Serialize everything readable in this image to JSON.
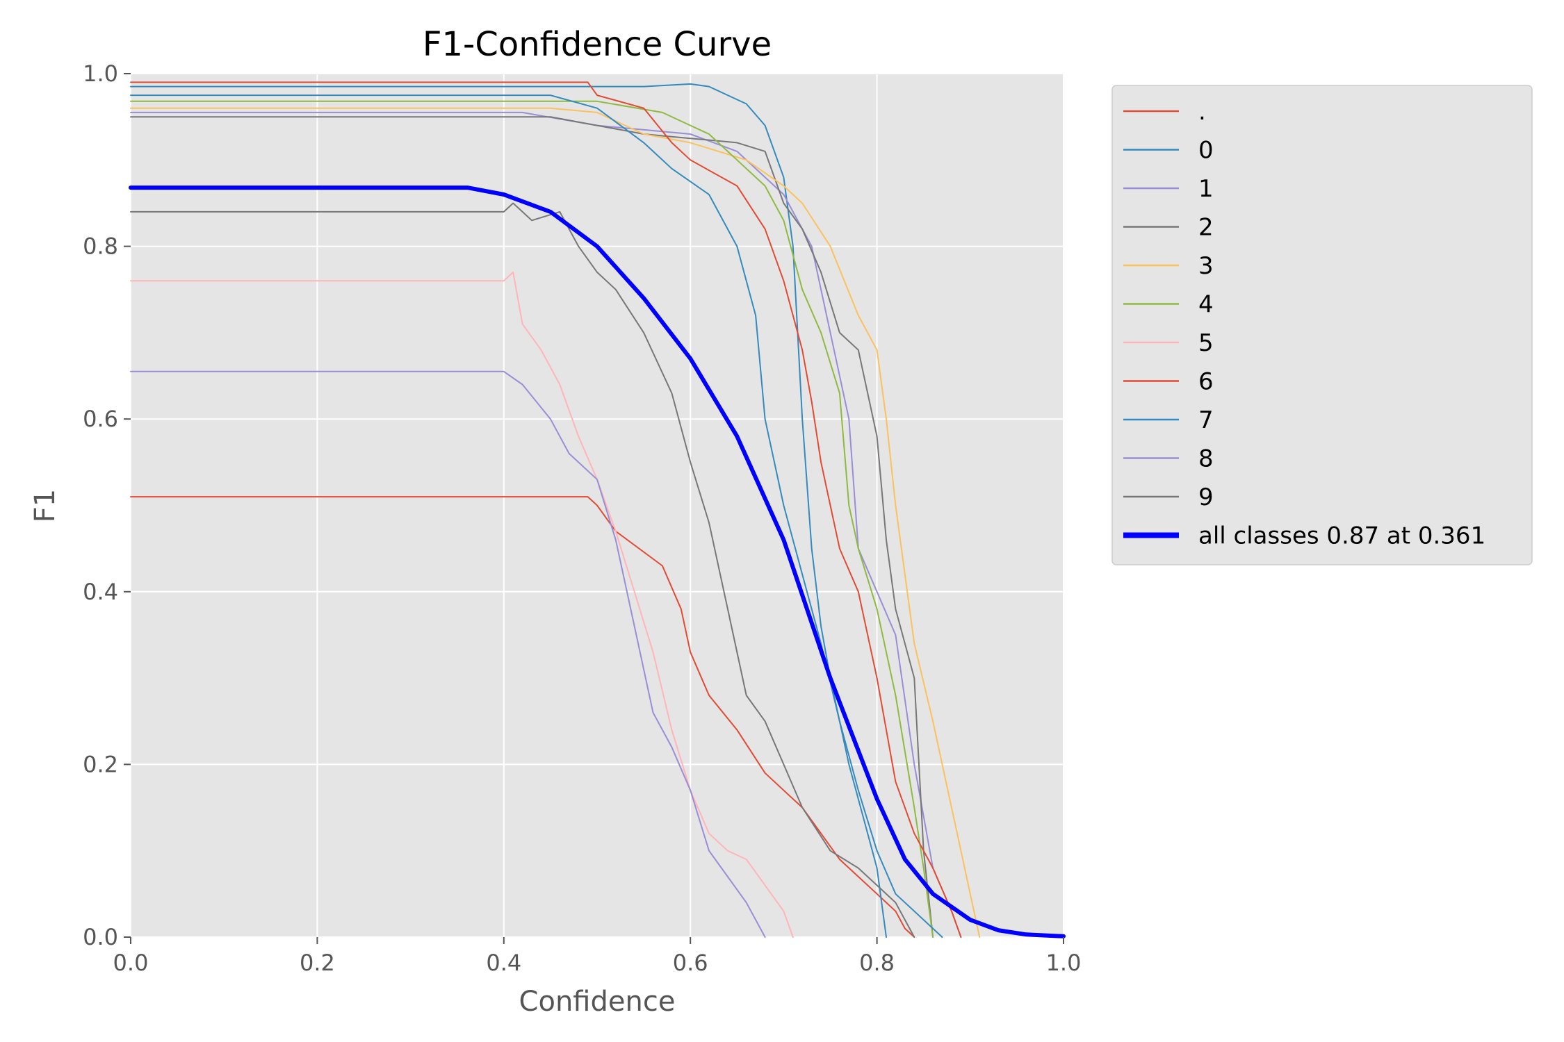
{
  "chart_data": {
    "type": "line",
    "title": "F1-Confidence Curve",
    "xlabel": "Confidence",
    "ylabel": "F1",
    "xlim": [
      0.0,
      1.0
    ],
    "ylim": [
      0.0,
      1.0
    ],
    "xticks": [
      "0.0",
      "0.2",
      "0.4",
      "0.6",
      "0.8",
      "1.0"
    ],
    "yticks": [
      "0.0",
      "0.2",
      "0.4",
      "0.6",
      "0.8",
      "1.0"
    ],
    "grid": true,
    "legend_position": "outside-right-top",
    "background": "#e5e5e5",
    "series": [
      {
        "name": ".",
        "color": "#e24a33",
        "width": 2,
        "x": [
          0,
          0.49,
          0.5,
          0.52,
          0.57,
          0.59,
          0.6,
          0.62,
          0.65,
          0.68,
          0.7,
          0.72,
          0.74,
          0.76,
          0.78,
          0.8,
          0.82,
          0.83,
          0.84
        ],
        "y": [
          0.51,
          0.51,
          0.5,
          0.47,
          0.43,
          0.38,
          0.33,
          0.28,
          0.24,
          0.19,
          0.17,
          0.15,
          0.12,
          0.09,
          0.07,
          0.05,
          0.03,
          0.01,
          0
        ]
      },
      {
        "name": "0",
        "color": "#348abd",
        "width": 2,
        "x": [
          0,
          0.5,
          0.55,
          0.6,
          0.62,
          0.64,
          0.66,
          0.68,
          0.7,
          0.71,
          0.72,
          0.73,
          0.74,
          0.75,
          0.77,
          0.79,
          0.8,
          0.81
        ],
        "y": [
          0.985,
          0.985,
          0.985,
          0.988,
          0.985,
          0.975,
          0.965,
          0.94,
          0.88,
          0.8,
          0.6,
          0.45,
          0.36,
          0.3,
          0.2,
          0.12,
          0.08,
          0
        ]
      },
      {
        "name": "1",
        "color": "#988ed5",
        "width": 2,
        "x": [
          0,
          0.42,
          0.5,
          0.6,
          0.65,
          0.7,
          0.73,
          0.75,
          0.77,
          0.78,
          0.8,
          0.82,
          0.84,
          0.86,
          0.88,
          0.89
        ],
        "y": [
          0.955,
          0.955,
          0.94,
          0.93,
          0.91,
          0.86,
          0.8,
          0.7,
          0.6,
          0.45,
          0.4,
          0.35,
          0.2,
          0.08,
          0.03,
          0
        ]
      },
      {
        "name": "2",
        "color": "#777777",
        "width": 2,
        "x": [
          0,
          0.45,
          0.5,
          0.55,
          0.6,
          0.65,
          0.68,
          0.7,
          0.72,
          0.74,
          0.76,
          0.78,
          0.8,
          0.81,
          0.82,
          0.84,
          0.85,
          0.86
        ],
        "y": [
          0.95,
          0.95,
          0.94,
          0.93,
          0.925,
          0.92,
          0.91,
          0.85,
          0.82,
          0.77,
          0.7,
          0.68,
          0.58,
          0.46,
          0.38,
          0.3,
          0.1,
          0
        ]
      },
      {
        "name": "3",
        "color": "#fbc15e",
        "width": 2,
        "x": [
          0,
          0.45,
          0.5,
          0.55,
          0.6,
          0.66,
          0.7,
          0.72,
          0.75,
          0.78,
          0.8,
          0.81,
          0.82,
          0.84,
          0.86,
          0.87,
          0.89,
          0.9,
          0.91
        ],
        "y": [
          0.96,
          0.96,
          0.955,
          0.93,
          0.92,
          0.9,
          0.87,
          0.85,
          0.8,
          0.72,
          0.68,
          0.6,
          0.5,
          0.34,
          0.25,
          0.2,
          0.1,
          0.05,
          0
        ]
      },
      {
        "name": "4",
        "color": "#8eba42",
        "width": 2,
        "x": [
          0,
          0.5,
          0.57,
          0.6,
          0.62,
          0.65,
          0.68,
          0.7,
          0.72,
          0.74,
          0.76,
          0.77,
          0.78,
          0.8,
          0.81,
          0.82,
          0.84,
          0.85,
          0.86
        ],
        "y": [
          0.968,
          0.968,
          0.955,
          0.94,
          0.93,
          0.9,
          0.87,
          0.83,
          0.75,
          0.7,
          0.63,
          0.5,
          0.45,
          0.38,
          0.33,
          0.28,
          0.15,
          0.08,
          0
        ]
      },
      {
        "name": "5",
        "color": "#ffb5b8",
        "width": 2,
        "x": [
          0,
          0.4,
          0.41,
          0.42,
          0.44,
          0.46,
          0.48,
          0.5,
          0.52,
          0.54,
          0.56,
          0.58,
          0.6,
          0.62,
          0.64,
          0.66,
          0.68,
          0.7,
          0.71
        ],
        "y": [
          0.76,
          0.76,
          0.77,
          0.71,
          0.68,
          0.64,
          0.58,
          0.53,
          0.47,
          0.4,
          0.33,
          0.24,
          0.17,
          0.12,
          0.1,
          0.09,
          0.06,
          0.03,
          0
        ]
      },
      {
        "name": "6",
        "color": "#e24a33",
        "width": 2,
        "x": [
          0,
          0.49,
          0.5,
          0.55,
          0.58,
          0.6,
          0.65,
          0.68,
          0.7,
          0.72,
          0.73,
          0.74,
          0.75,
          0.76,
          0.78,
          0.8,
          0.82,
          0.84,
          0.86,
          0.88,
          0.89
        ],
        "y": [
          0.99,
          0.99,
          0.975,
          0.96,
          0.92,
          0.9,
          0.87,
          0.82,
          0.76,
          0.68,
          0.62,
          0.55,
          0.5,
          0.45,
          0.4,
          0.3,
          0.18,
          0.12,
          0.08,
          0.03,
          0
        ]
      },
      {
        "name": "7",
        "color": "#348abd",
        "width": 2,
        "x": [
          0,
          0.4,
          0.45,
          0.5,
          0.55,
          0.58,
          0.62,
          0.65,
          0.67,
          0.68,
          0.7,
          0.72,
          0.74,
          0.76,
          0.78,
          0.8,
          0.82,
          0.84,
          0.86,
          0.87
        ],
        "y": [
          0.975,
          0.975,
          0.975,
          0.96,
          0.92,
          0.89,
          0.86,
          0.8,
          0.72,
          0.6,
          0.5,
          0.42,
          0.34,
          0.25,
          0.17,
          0.1,
          0.05,
          0.03,
          0.01,
          0
        ]
      },
      {
        "name": "8",
        "color": "#988ed5",
        "width": 2,
        "x": [
          0,
          0.4,
          0.42,
          0.45,
          0.47,
          0.5,
          0.52,
          0.54,
          0.56,
          0.58,
          0.6,
          0.62,
          0.64,
          0.66,
          0.68
        ],
        "y": [
          0.655,
          0.655,
          0.64,
          0.6,
          0.56,
          0.53,
          0.46,
          0.36,
          0.26,
          0.22,
          0.17,
          0.1,
          0.07,
          0.04,
          0
        ]
      },
      {
        "name": "9",
        "color": "#777777",
        "width": 2,
        "x": [
          0,
          0.4,
          0.41,
          0.43,
          0.46,
          0.48,
          0.5,
          0.52,
          0.55,
          0.58,
          0.6,
          0.62,
          0.64,
          0.66,
          0.68,
          0.7,
          0.72,
          0.75,
          0.78,
          0.8,
          0.82,
          0.84
        ],
        "y": [
          0.84,
          0.84,
          0.85,
          0.83,
          0.84,
          0.8,
          0.77,
          0.75,
          0.7,
          0.63,
          0.55,
          0.48,
          0.38,
          0.28,
          0.25,
          0.2,
          0.15,
          0.1,
          0.08,
          0.06,
          0.04,
          0
        ]
      },
      {
        "name": "all classes 0.87 at 0.361",
        "color": "#0000ff",
        "width": 6,
        "x": [
          0,
          0.361,
          0.4,
          0.45,
          0.5,
          0.55,
          0.6,
          0.65,
          0.7,
          0.75,
          0.8,
          0.83,
          0.86,
          0.9,
          0.93,
          0.96,
          1.0
        ],
        "y": [
          0.868,
          0.868,
          0.86,
          0.84,
          0.8,
          0.74,
          0.67,
          0.58,
          0.46,
          0.3,
          0.16,
          0.09,
          0.05,
          0.02,
          0.008,
          0.003,
          0.001
        ]
      }
    ]
  }
}
